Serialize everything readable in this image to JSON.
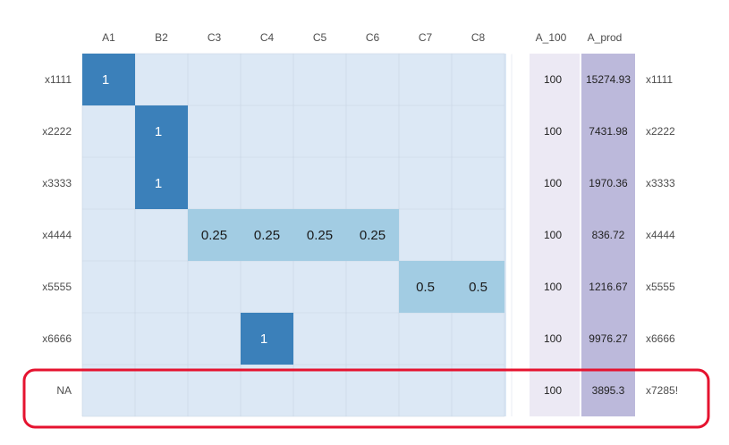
{
  "chart_data": {
    "type": "heatmap",
    "columns": [
      "A1",
      "B2",
      "C3",
      "C4",
      "C5",
      "C6",
      "C7",
      "C8"
    ],
    "rows": [
      "x1111",
      "x2222",
      "x3333",
      "x4444",
      "x5555",
      "x6666",
      "NA"
    ],
    "matrix": [
      [
        1,
        null,
        null,
        null,
        null,
        null,
        null,
        null
      ],
      [
        null,
        1,
        null,
        null,
        null,
        null,
        null,
        null
      ],
      [
        null,
        1,
        null,
        null,
        null,
        null,
        null,
        null
      ],
      [
        null,
        null,
        0.25,
        0.25,
        0.25,
        0.25,
        null,
        null
      ],
      [
        null,
        null,
        null,
        null,
        null,
        null,
        0.5,
        0.5
      ],
      [
        null,
        null,
        null,
        1,
        null,
        null,
        null,
        null
      ],
      [
        null,
        null,
        null,
        null,
        null,
        null,
        null,
        null
      ]
    ],
    "a100": {
      "header": "A_100",
      "values": [
        "100",
        "100",
        "100",
        "100",
        "100",
        "100",
        "100"
      ]
    },
    "a_prod": {
      "header": "A_prod",
      "values": [
        "15274.93",
        "7431.98",
        "1970.36",
        "836.72",
        "1216.67",
        "9976.27",
        "3895.3"
      ]
    },
    "right_labels": [
      "x1111",
      "x2222",
      "x3333",
      "x4444",
      "x5555",
      "x6666",
      "x7285!"
    ],
    "highlight_row": 6,
    "colors": {
      "background": "#dce8f5",
      "value_1": "#3b80ba",
      "value_fraction": "#a2cce3",
      "a100_column": "#ece9f4",
      "a_prod_column": "#bcb9db",
      "highlight_border": "#e5132f",
      "grid": "#c8d4e2"
    }
  }
}
